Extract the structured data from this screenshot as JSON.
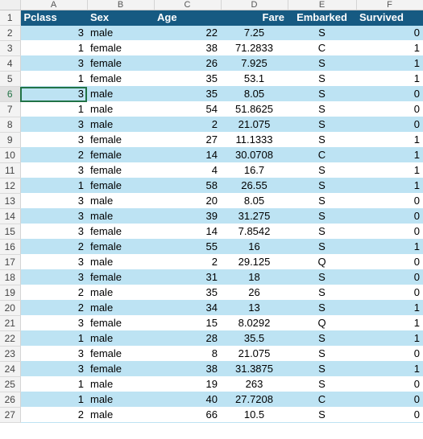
{
  "sheet": {
    "column_letters": [
      "A",
      "B",
      "C",
      "D",
      "E",
      "F"
    ],
    "row_numbers": [
      "1",
      "2",
      "3",
      "4",
      "5",
      "6",
      "7",
      "8",
      "9",
      "10",
      "11",
      "12",
      "13",
      "14",
      "15",
      "16",
      "17",
      "18",
      "19",
      "20",
      "21",
      "22",
      "23",
      "24",
      "25",
      "26",
      "27"
    ],
    "selected_row": "6",
    "headers": [
      "Pclass",
      "Sex",
      "Age",
      "Fare",
      "Embarked",
      "Survived"
    ],
    "rows": [
      [
        "3",
        "male",
        "22",
        "7.25",
        "S",
        "0"
      ],
      [
        "1",
        "female",
        "38",
        "71.2833",
        "C",
        "1"
      ],
      [
        "3",
        "female",
        "26",
        "7.925",
        "S",
        "1"
      ],
      [
        "1",
        "female",
        "35",
        "53.1",
        "S",
        "1"
      ],
      [
        "3",
        "male",
        "35",
        "8.05",
        "S",
        "0"
      ],
      [
        "1",
        "male",
        "54",
        "51.8625",
        "S",
        "0"
      ],
      [
        "3",
        "male",
        "2",
        "21.075",
        "S",
        "0"
      ],
      [
        "3",
        "female",
        "27",
        "11.1333",
        "S",
        "1"
      ],
      [
        "2",
        "female",
        "14",
        "30.0708",
        "C",
        "1"
      ],
      [
        "3",
        "female",
        "4",
        "16.7",
        "S",
        "1"
      ],
      [
        "1",
        "female",
        "58",
        "26.55",
        "S",
        "1"
      ],
      [
        "3",
        "male",
        "20",
        "8.05",
        "S",
        "0"
      ],
      [
        "3",
        "male",
        "39",
        "31.275",
        "S",
        "0"
      ],
      [
        "3",
        "female",
        "14",
        "7.8542",
        "S",
        "0"
      ],
      [
        "2",
        "female",
        "55",
        "16",
        "S",
        "1"
      ],
      [
        "3",
        "male",
        "2",
        "29.125",
        "Q",
        "0"
      ],
      [
        "3",
        "female",
        "31",
        "18",
        "S",
        "0"
      ],
      [
        "2",
        "male",
        "35",
        "26",
        "S",
        "0"
      ],
      [
        "2",
        "male",
        "34",
        "13",
        "S",
        "1"
      ],
      [
        "3",
        "female",
        "15",
        "8.0292",
        "Q",
        "1"
      ],
      [
        "1",
        "male",
        "28",
        "35.5",
        "S",
        "1"
      ],
      [
        "3",
        "female",
        "8",
        "21.075",
        "S",
        "0"
      ],
      [
        "3",
        "female",
        "38",
        "31.3875",
        "S",
        "1"
      ],
      [
        "1",
        "male",
        "19",
        "263",
        "S",
        "0"
      ],
      [
        "1",
        "male",
        "40",
        "27.7208",
        "C",
        "0"
      ],
      [
        "2",
        "male",
        "66",
        "10.5",
        "S",
        "0"
      ]
    ]
  }
}
